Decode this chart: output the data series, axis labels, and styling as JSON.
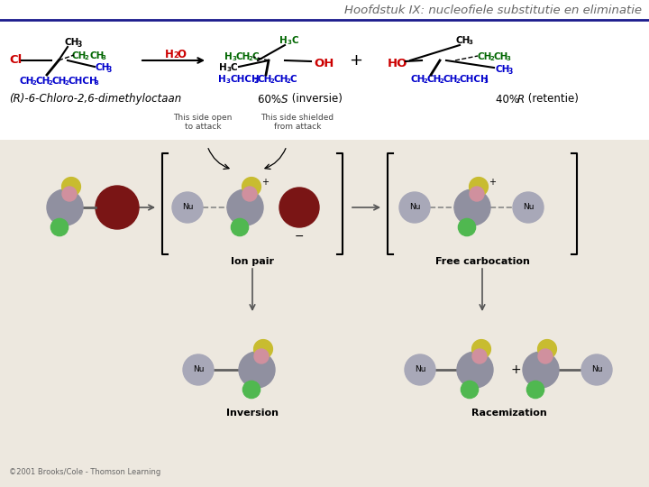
{
  "title": "Hoofdstuk IX: nucleofiele substitutie en eliminatie",
  "title_color": "#666666",
  "title_fontsize": 9.5,
  "title_style": "italic",
  "background_color": "#ffffff",
  "header_line_color": "#1a1a8c",
  "label_left": "(R)-6-Chloro-2,6-dimethyloctaan",
  "label_center_pct": "60% ",
  "label_center_S": "S",
  "label_center_rest": " (inversie)",
  "label_right_pct": "40% ",
  "label_right_R": "R",
  "label_right_rest": " (retentie)",
  "label_fontsize": 8.5,
  "label_color": "#000000",
  "mechanism_bg": "#ede8df",
  "copyright": "©2001 Brooks/Cole - Thomson Learning",
  "copyright_fontsize": 6.0,
  "ion_pair_label": "Ion pair",
  "free_carbo_label": "Free carbocation",
  "inversion_label": "Inversion",
  "racemization_label": "Racemization",
  "annotation_open": "This side open\nto attack",
  "annotation_shielded": "This side shielded\nfrom attack",
  "bold_label_fontsize": 8.0
}
